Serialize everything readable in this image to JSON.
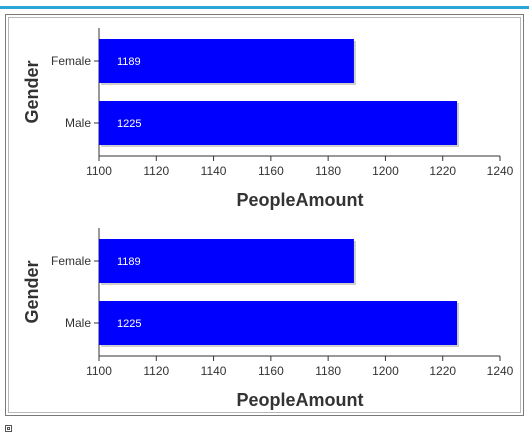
{
  "colors": {
    "accent": "#2aa6d6",
    "bar": "#0000ff",
    "bar_shadow": "#cfcfcf",
    "text": "#333333"
  },
  "chart_data": [
    {
      "type": "bar",
      "orientation": "horizontal",
      "categories": [
        "Female",
        "Male"
      ],
      "values": [
        1189,
        1225
      ],
      "data_labels": [
        "1189",
        "1225"
      ],
      "xlabel": "PeopleAmount",
      "ylabel": "Gender",
      "xlim": [
        1100,
        1240
      ],
      "xticks": [
        "1100",
        "1120",
        "1140",
        "1160",
        "1180",
        "1200",
        "1220",
        "1240"
      ],
      "grid": false,
      "legend": "none"
    },
    {
      "type": "bar",
      "orientation": "horizontal",
      "categories": [
        "Female",
        "Male"
      ],
      "values": [
        1189,
        1225
      ],
      "data_labels": [
        "1189",
        "1225"
      ],
      "xlabel": "PeopleAmount",
      "ylabel": "Gender",
      "xlim": [
        1100,
        1240
      ],
      "xticks": [
        "1100",
        "1120",
        "1140",
        "1160",
        "1180",
        "1200",
        "1220",
        "1240"
      ],
      "grid": false,
      "legend": "none"
    }
  ]
}
